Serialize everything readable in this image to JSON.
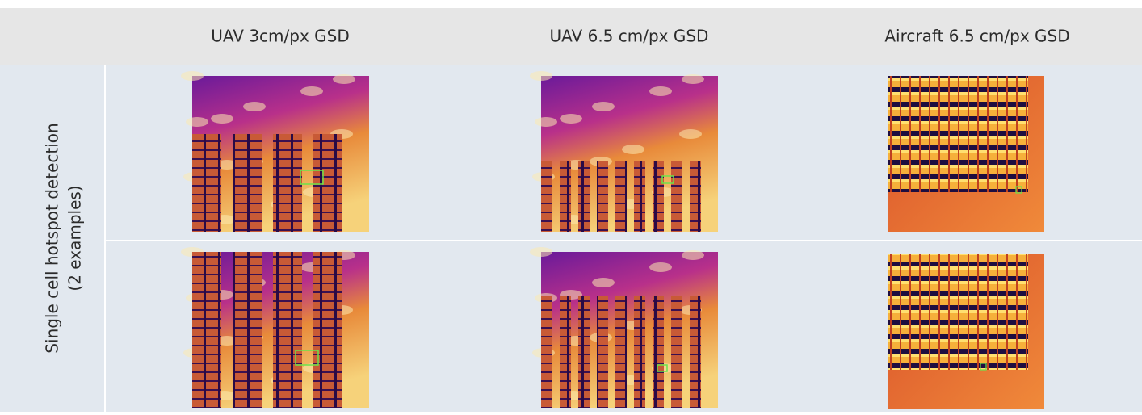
{
  "header": {
    "columns": [
      "UAV 3cm/px GSD",
      "UAV 6.5 cm/px GSD",
      "Aircraft 6.5 cm/px GSD"
    ]
  },
  "table": {
    "row_label": {
      "line1": "Single cell hotspot detection",
      "line2": "(2 examples)"
    }
  }
}
